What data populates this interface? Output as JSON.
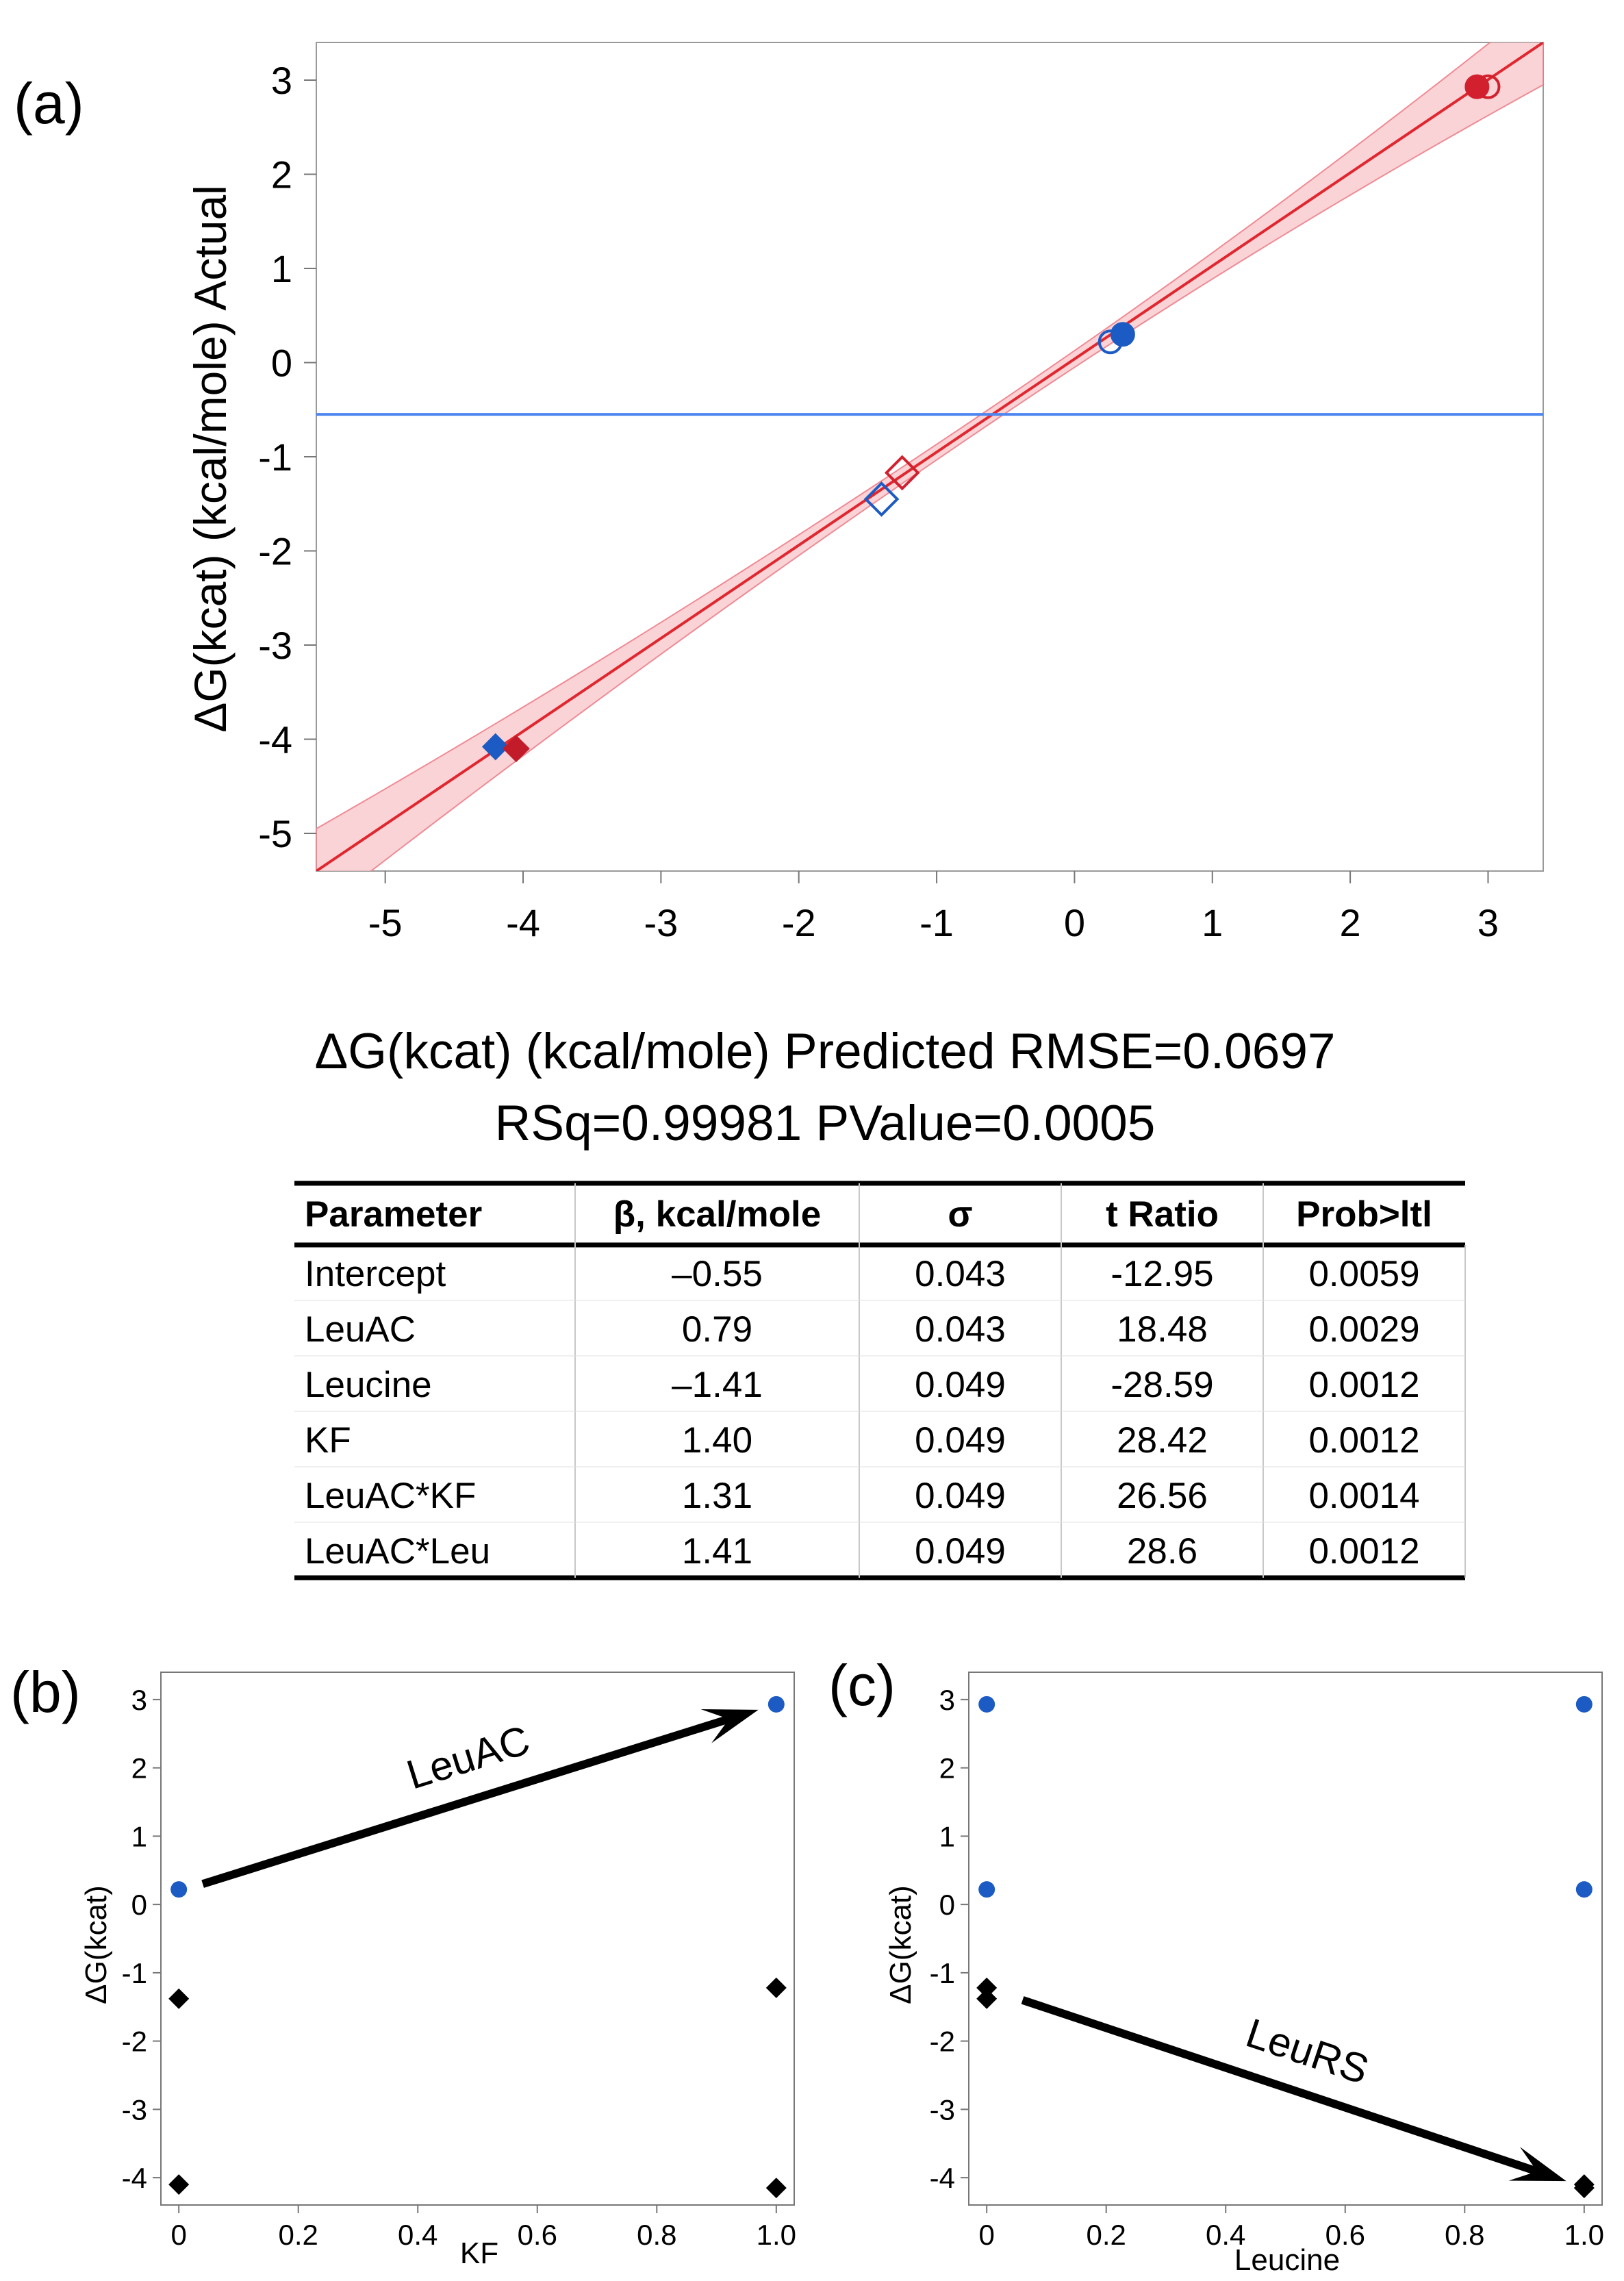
{
  "chart_data": [
    {
      "panel": "(a)",
      "type": "scatter",
      "title": "",
      "xlabel": "ΔG(kcat) (kcal/mole) Predicted RMSE=0.0697",
      "ylabel": "ΔG(kcat) (kcal/mole) Actual",
      "xlim": [
        -5.5,
        3.4
      ],
      "ylim": [
        -5.4,
        3.4
      ],
      "x_ticks": [
        "-5",
        "-4",
        "-3",
        "-2",
        "-1",
        "0",
        "1",
        "2",
        "3"
      ],
      "y_ticks": [
        "3",
        "2",
        "1",
        "0",
        "-1",
        "-2",
        "-3",
        "-4",
        "-5"
      ],
      "fit_line": {
        "from": [
          -5.5,
          -5.4
        ],
        "to": [
          3.4,
          3.4
        ],
        "color": "#e0262e"
      },
      "confidence_band": {
        "color": "#f7c4c8",
        "half_width_ends": 0.45,
        "half_width_center": 0.08
      },
      "mean_line": {
        "y": -0.55,
        "color": "#4d86f0"
      },
      "points": [
        {
          "x": 2.92,
          "y": 2.93,
          "marker": "circle",
          "fill": "filled",
          "color": "#d2202e"
        },
        {
          "x": 3.0,
          "y": 2.93,
          "marker": "circle",
          "fill": "open",
          "color": "#d2202e"
        },
        {
          "x": 0.35,
          "y": 0.3,
          "marker": "circle",
          "fill": "filled",
          "color": "#1d5bc4"
        },
        {
          "x": 0.26,
          "y": 0.22,
          "marker": "circle",
          "fill": "open",
          "color": "#1d5bc4"
        },
        {
          "x": -1.25,
          "y": -1.17,
          "marker": "diamond",
          "fill": "open",
          "color": "#d2202e"
        },
        {
          "x": -1.4,
          "y": -1.45,
          "marker": "diamond",
          "fill": "open",
          "color": "#1d5bc4"
        },
        {
          "x": -4.2,
          "y": -4.08,
          "marker": "diamond",
          "fill": "filled",
          "color": "#1d5bc4"
        },
        {
          "x": -4.05,
          "y": -4.1,
          "marker": "diamond",
          "fill": "filled",
          "color": "#c21b2a"
        }
      ]
    },
    {
      "panel": "(b)",
      "type": "scatter",
      "xlabel": "KF",
      "ylabel": "ΔG(kcat)",
      "xlim": [
        -0.03,
        1.03
      ],
      "ylim": [
        -4.4,
        3.4
      ],
      "x_ticks": [
        "0",
        "0.2",
        "0.4",
        "0.6",
        "0.8",
        "1.0"
      ],
      "y_ticks": [
        "3",
        "2",
        "1",
        "0",
        "-1",
        "-2",
        "-3",
        "-4"
      ],
      "points": [
        {
          "x": 0,
          "y": 0.22,
          "marker": "circle",
          "color": "#1d5bc4"
        },
        {
          "x": 1,
          "y": 2.93,
          "marker": "circle",
          "color": "#1d5bc4"
        },
        {
          "x": 0,
          "y": -1.38,
          "marker": "diamond",
          "color": "#000000"
        },
        {
          "x": 1,
          "y": -1.22,
          "marker": "diamond",
          "color": "#000000"
        },
        {
          "x": 0,
          "y": -4.1,
          "marker": "diamond",
          "color": "#000000"
        },
        {
          "x": 1,
          "y": -4.15,
          "marker": "diamond",
          "color": "#000000"
        }
      ],
      "annotation": {
        "text": "LeuAC",
        "from": [
          0.04,
          0.3
        ],
        "to": [
          0.97,
          2.85
        ]
      }
    },
    {
      "panel": "(c)",
      "type": "scatter",
      "xlabel": "Leucine",
      "ylabel": "ΔG(kcat)",
      "xlim": [
        -0.03,
        1.03
      ],
      "ylim": [
        -4.4,
        3.4
      ],
      "x_ticks": [
        "0",
        "0.2",
        "0.4",
        "0.6",
        "0.8",
        "1.0"
      ],
      "y_ticks": [
        "3",
        "2",
        "1",
        "0",
        "-1",
        "-2",
        "-3",
        "-4"
      ],
      "points": [
        {
          "x": 0,
          "y": 2.93,
          "marker": "circle",
          "color": "#1d5bc4"
        },
        {
          "x": 1,
          "y": 2.93,
          "marker": "circle",
          "color": "#1d5bc4"
        },
        {
          "x": 0,
          "y": 0.22,
          "marker": "circle",
          "color": "#1d5bc4"
        },
        {
          "x": 1,
          "y": 0.22,
          "marker": "circle",
          "color": "#1d5bc4"
        },
        {
          "x": 0,
          "y": -1.22,
          "marker": "diamond",
          "color": "#000000"
        },
        {
          "x": 0,
          "y": -1.38,
          "marker": "diamond",
          "color": "#000000"
        },
        {
          "x": 1,
          "y": -4.1,
          "marker": "diamond",
          "color": "#000000"
        },
        {
          "x": 1,
          "y": -4.15,
          "marker": "diamond",
          "color": "#000000"
        }
      ],
      "annotation": {
        "text": "LeuRS",
        "from": [
          0.06,
          -1.4
        ],
        "to": [
          0.97,
          -4.05
        ]
      }
    }
  ],
  "summary": {
    "line1": "ΔG(kcat) (kcal/mole) Predicted RMSE=0.0697",
    "line2": "RSq=0.99981 PValue=0.0005"
  },
  "table": {
    "headers": [
      "Parameter",
      "β, kcal/mole",
      "σ",
      "t Ratio",
      "Prob>ltl"
    ],
    "rows": [
      [
        "Intercept",
        "–0.55",
        "0.043",
        "-12.95",
        "0.0059"
      ],
      [
        "LeuAC",
        "0.79",
        "0.043",
        "18.48",
        "0.0029"
      ],
      [
        "Leucine",
        "–1.41",
        "0.049",
        "-28.59",
        "0.0012"
      ],
      [
        "KF",
        "1.40",
        "0.049",
        "28.42",
        "0.0012"
      ],
      [
        "LeuAC*KF",
        "1.31",
        "0.049",
        "26.56",
        "0.0014"
      ],
      [
        "LeuAC*Leu",
        "1.41",
        "0.049",
        "28.6",
        "0.0012"
      ]
    ]
  }
}
